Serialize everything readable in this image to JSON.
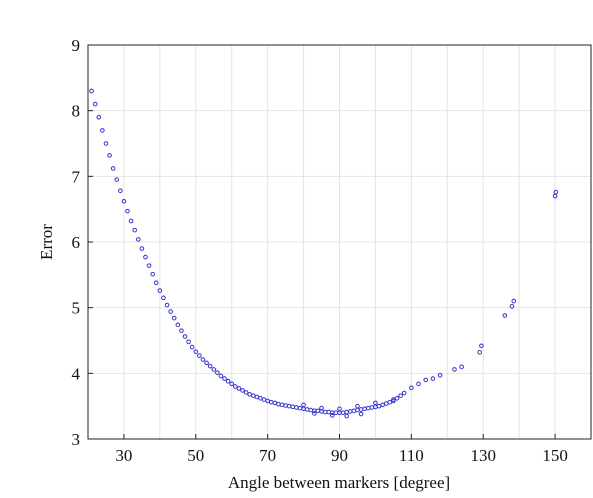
{
  "chart_data": {
    "type": "scatter",
    "title": "",
    "xlabel": "Angle between markers [degree]",
    "ylabel": "Error",
    "xlim": [
      20,
      160
    ],
    "ylim": [
      3,
      9
    ],
    "xticks": [
      30,
      50,
      70,
      90,
      110,
      130,
      150
    ],
    "yticks": [
      3,
      4,
      5,
      6,
      7,
      8,
      9
    ],
    "grid": true,
    "point_color": "#3333cc",
    "series": [
      {
        "points": [
          [
            21,
            8.3
          ],
          [
            22,
            8.1
          ],
          [
            23,
            7.9
          ],
          [
            24,
            7.7
          ],
          [
            25,
            7.5
          ],
          [
            26,
            7.32
          ],
          [
            27,
            7.12
          ],
          [
            28,
            6.95
          ],
          [
            29,
            6.78
          ],
          [
            30,
            6.62
          ],
          [
            31,
            6.47
          ],
          [
            32,
            6.32
          ],
          [
            33,
            6.18
          ],
          [
            34,
            6.04
          ],
          [
            35,
            5.9
          ],
          [
            36,
            5.77
          ],
          [
            37,
            5.64
          ],
          [
            38,
            5.51
          ],
          [
            39,
            5.38
          ],
          [
            40,
            5.26
          ],
          [
            41,
            5.15
          ],
          [
            42,
            5.04
          ],
          [
            43,
            4.94
          ],
          [
            44,
            4.84
          ],
          [
            45,
            4.74
          ],
          [
            46,
            4.65
          ],
          [
            47,
            4.56
          ],
          [
            48,
            4.48
          ],
          [
            49,
            4.4
          ],
          [
            50,
            4.33
          ],
          [
            51,
            4.27
          ],
          [
            52,
            4.21
          ],
          [
            53,
            4.16
          ],
          [
            54,
            4.11
          ],
          [
            55,
            4.06
          ],
          [
            56,
            4.01
          ],
          [
            57,
            3.96
          ],
          [
            58,
            3.92
          ],
          [
            59,
            3.88
          ],
          [
            60,
            3.84
          ],
          [
            61,
            3.8
          ],
          [
            62,
            3.77
          ],
          [
            63,
            3.74
          ],
          [
            64,
            3.71
          ],
          [
            65,
            3.68
          ],
          [
            66,
            3.66
          ],
          [
            67,
            3.64
          ],
          [
            68,
            3.62
          ],
          [
            69,
            3.6
          ],
          [
            70,
            3.58
          ],
          [
            71,
            3.56
          ],
          [
            72,
            3.55
          ],
          [
            73,
            3.53
          ],
          [
            74,
            3.52
          ],
          [
            75,
            3.51
          ],
          [
            76,
            3.5
          ],
          [
            77,
            3.49
          ],
          [
            78,
            3.48
          ],
          [
            79,
            3.47
          ],
          [
            80,
            3.46
          ],
          [
            81,
            3.45
          ],
          [
            82,
            3.44
          ],
          [
            83,
            3.43
          ],
          [
            84,
            3.43
          ],
          [
            85,
            3.42
          ],
          [
            86,
            3.41
          ],
          [
            87,
            3.41
          ],
          [
            88,
            3.4
          ],
          [
            89,
            3.4
          ],
          [
            90,
            3.4
          ],
          [
            91,
            3.4
          ],
          [
            92,
            3.41
          ],
          [
            93,
            3.42
          ],
          [
            94,
            3.43
          ],
          [
            95,
            3.44
          ],
          [
            96,
            3.45
          ],
          [
            97,
            3.46
          ],
          [
            98,
            3.47
          ],
          [
            99,
            3.48
          ],
          [
            100,
            3.49
          ],
          [
            101,
            3.5
          ],
          [
            102,
            3.52
          ],
          [
            103,
            3.54
          ],
          [
            104,
            3.56
          ],
          [
            105,
            3.58
          ],
          [
            106,
            3.62
          ],
          [
            107,
            3.66
          ],
          [
            108,
            3.7
          ],
          [
            110,
            3.78
          ],
          [
            112,
            3.84
          ],
          [
            114,
            3.9
          ],
          [
            116,
            3.92
          ],
          [
            118,
            3.97
          ],
          [
            122,
            4.06
          ],
          [
            124,
            4.1
          ],
          [
            129,
            4.32
          ],
          [
            129.5,
            4.42
          ],
          [
            136,
            4.88
          ],
          [
            138,
            5.02
          ],
          [
            138.5,
            5.1
          ],
          [
            150,
            6.7
          ],
          [
            150.2,
            6.76
          ],
          [
            80,
            3.52
          ],
          [
            85,
            3.47
          ],
          [
            90,
            3.46
          ],
          [
            95,
            3.5
          ],
          [
            100,
            3.55
          ],
          [
            105,
            3.6
          ],
          [
            88,
            3.36
          ],
          [
            92,
            3.35
          ],
          [
            96,
            3.38
          ],
          [
            83,
            3.39
          ]
        ]
      }
    ]
  }
}
